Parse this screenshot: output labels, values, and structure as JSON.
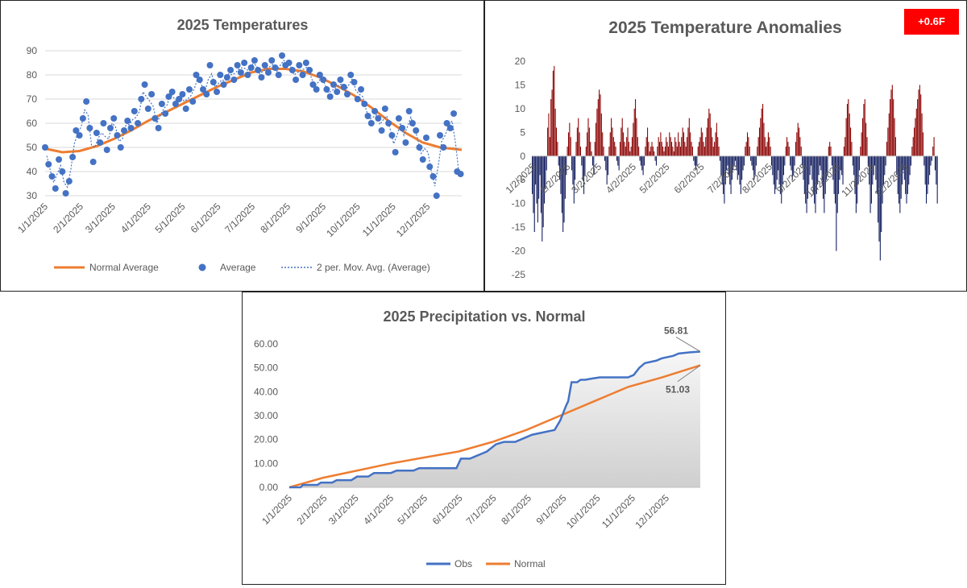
{
  "chart_data": [
    {
      "type": "scatter",
      "title": "2025 Temperatures",
      "x_tick_labels": [
        "1/1/2025",
        "2/1/2025",
        "3/1/2025",
        "4/1/2025",
        "5/1/2025",
        "6/1/2025",
        "7/1/2025",
        "8/1/2025",
        "9/1/2025",
        "10/1/2025",
        "11/1/2025",
        "12/1/2025"
      ],
      "x_tick_days": [
        0,
        31,
        59,
        90,
        120,
        151,
        181,
        212,
        243,
        273,
        304,
        334
      ],
      "xlim": [
        0,
        364
      ],
      "ylim": [
        30,
        90
      ],
      "yticks": [
        30,
        40,
        50,
        60,
        70,
        80,
        90
      ],
      "grid": true,
      "legend_position": "bottom",
      "series": [
        {
          "name": "Normal Average",
          "kind": "line",
          "color": "#ED7D31",
          "x": [
            0,
            15,
            30,
            45,
            60,
            75,
            90,
            105,
            120,
            135,
            150,
            165,
            180,
            195,
            210,
            225,
            240,
            255,
            270,
            285,
            300,
            315,
            330,
            345,
            364
          ],
          "y": [
            49.5,
            48,
            48.5,
            50.5,
            53.5,
            57,
            61,
            64.5,
            68,
            71.5,
            75,
            78,
            81,
            82.5,
            82.5,
            81.5,
            79,
            75.5,
            71.5,
            66.5,
            61,
            56,
            52,
            50,
            49
          ]
        },
        {
          "name": "Average",
          "kind": "scatter",
          "color": "#4472C4",
          "x": [
            0,
            3,
            6,
            9,
            12,
            15,
            18,
            21,
            24,
            27,
            30,
            33,
            36,
            39,
            42,
            45,
            48,
            51,
            54,
            57,
            60,
            63,
            66,
            69,
            72,
            75,
            78,
            81,
            84,
            87,
            90,
            93,
            96,
            99,
            102,
            105,
            108,
            111,
            114,
            117,
            120,
            123,
            126,
            129,
            132,
            135,
            138,
            141,
            144,
            147,
            150,
            153,
            156,
            159,
            162,
            165,
            168,
            171,
            174,
            177,
            180,
            183,
            186,
            189,
            192,
            195,
            198,
            201,
            204,
            207,
            210,
            213,
            216,
            219,
            222,
            225,
            228,
            231,
            234,
            237,
            240,
            243,
            246,
            249,
            252,
            255,
            258,
            261,
            264,
            267,
            270,
            273,
            276,
            279,
            282,
            285,
            288,
            291,
            294,
            297,
            300,
            303,
            306,
            309,
            312,
            315,
            318,
            321,
            324,
            327,
            330,
            333,
            336,
            339,
            342,
            345,
            348,
            351,
            354,
            357,
            360,
            363
          ],
          "y": [
            50,
            43,
            38,
            33,
            45,
            40,
            31,
            36,
            46,
            57,
            55,
            62,
            69,
            58,
            44,
            56,
            52,
            60,
            49,
            58,
            62,
            55,
            50,
            57,
            61,
            58,
            65,
            60,
            70,
            76,
            66,
            72,
            62,
            58,
            68,
            64,
            71,
            73,
            68,
            70,
            72,
            66,
            74,
            69,
            80,
            78,
            74,
            72,
            84,
            77,
            73,
            80,
            76,
            79,
            82,
            78,
            84,
            81,
            85,
            80,
            83,
            86,
            82,
            79,
            84,
            81,
            86,
            83,
            80,
            88,
            84,
            85,
            82,
            78,
            84,
            80,
            85,
            82,
            76,
            74,
            80,
            78,
            74,
            71,
            76,
            73,
            78,
            75,
            72,
            80,
            77,
            70,
            74,
            68,
            63,
            60,
            65,
            62,
            57,
            66,
            60,
            55,
            48,
            62,
            58,
            52,
            65,
            60,
            57,
            50,
            45,
            54,
            42,
            38,
            30,
            55,
            50,
            60,
            58,
            64,
            40,
            39
          ]
        },
        {
          "name": "2 per. Mov. Avg. (Average)",
          "kind": "dotted-line",
          "color": "#4472C4"
        }
      ]
    },
    {
      "type": "bar",
      "title": "2025 Temperature Anomalies",
      "badge": "+0.6F",
      "x_tick_labels": [
        "1/2/2025",
        "2/2/2025",
        "3/2/2025",
        "4/2/2025",
        "5/2/2025",
        "6/2/2025",
        "7/2/2025",
        "8/2/2025",
        "9/2/2025",
        "10/2/2025",
        "11/2/2025",
        "12/2/2025"
      ],
      "x_tick_days": [
        1,
        32,
        60,
        91,
        121,
        152,
        182,
        213,
        244,
        274,
        305,
        335
      ],
      "xlim": [
        0,
        364
      ],
      "ylim": [
        -25,
        20
      ],
      "yticks": [
        -25,
        -20,
        -15,
        -10,
        -5,
        0,
        5,
        10,
        15,
        20
      ],
      "positive_color": "#8B0000",
      "negative_color": "#0F1A5C",
      "values": [
        -8,
        -12,
        -16,
        -6,
        -10,
        -14,
        -9,
        -4,
        -12,
        -18,
        -15,
        -10,
        -7,
        -3,
        6,
        9,
        4,
        12,
        14,
        18,
        19,
        10,
        6,
        3,
        -2,
        -5,
        -8,
        -12,
        -16,
        -14,
        -9,
        -4,
        2,
        5,
        7,
        4,
        -3,
        -6,
        -10,
        -5,
        3,
        6,
        8,
        5,
        2,
        -2,
        -5,
        -8,
        -4,
        2,
        5,
        8,
        6,
        3,
        1,
        -2,
        -4,
        3,
        7,
        10,
        12,
        14,
        13,
        9,
        5,
        2,
        -1,
        -3,
        -6,
        -4,
        2,
        5,
        8,
        6,
        4,
        3,
        2,
        -1,
        -2,
        -3,
        3,
        6,
        8,
        5,
        3,
        2,
        4,
        6,
        3,
        1,
        2,
        4,
        7,
        10,
        12,
        8,
        4,
        2,
        -1,
        -2,
        -3,
        -4,
        -2,
        2,
        4,
        6,
        3,
        1,
        2,
        3,
        2,
        1,
        -1,
        -2,
        2,
        4,
        3,
        5,
        3,
        2,
        1,
        2,
        4,
        3,
        2,
        5,
        4,
        3,
        2,
        1,
        4,
        3,
        2,
        5,
        3,
        2,
        4,
        6,
        5,
        3,
        2,
        4,
        6,
        8,
        5,
        3,
        2,
        -1,
        -2,
        -3,
        -2,
        2,
        3,
        4,
        6,
        5,
        3,
        2,
        4,
        6,
        8,
        10,
        9,
        6,
        4,
        2,
        3,
        5,
        7,
        4,
        2,
        -1,
        -4,
        -6,
        -8,
        -10,
        -6,
        -3,
        -2,
        -4,
        -6,
        -8,
        -5,
        -3,
        -2,
        -1,
        -3,
        -5,
        -4,
        -6,
        -8,
        -5,
        -3,
        -2,
        2,
        3,
        5,
        4,
        2,
        -1,
        -2,
        -3,
        -5,
        -4,
        -2,
        2,
        4,
        6,
        8,
        10,
        11,
        7,
        4,
        2,
        3,
        5,
        4,
        2,
        -2,
        -4,
        -6,
        -8,
        -7,
        -5,
        -3,
        -6,
        -8,
        -10,
        -6,
        -4,
        -2,
        2,
        4,
        3,
        2,
        -2,
        -3,
        -5,
        -4,
        -2,
        3,
        5,
        7,
        6,
        4,
        2,
        -2,
        -5,
        -8,
        -10,
        -12,
        -9,
        -6,
        -4,
        -2,
        -5,
        -8,
        -10,
        -12,
        -8,
        -6,
        -4,
        -2,
        -3,
        -6,
        -9,
        -12,
        -8,
        -5,
        -4,
        2,
        3,
        2,
        -2,
        -5,
        -8,
        -10,
        -20,
        -12,
        -8,
        -5,
        -3,
        -4,
        -6,
        2,
        4,
        8,
        11,
        12,
        9,
        6,
        3,
        -2,
        -4,
        -8,
        -12,
        -10,
        -6,
        -3,
        2,
        5,
        8,
        11,
        12,
        7,
        4,
        -2,
        -6,
        -12,
        -10,
        -6,
        -4,
        -2,
        -5,
        -8,
        -14,
        -18,
        -22,
        -16,
        -10,
        -6,
        -4,
        -2,
        3,
        6,
        9,
        12,
        14,
        15,
        12,
        8,
        4,
        -4,
        -8,
        -10,
        -12,
        -9,
        -6,
        -3,
        -5,
        -8,
        -10,
        -8,
        -6,
        -4,
        -2,
        2,
        4,
        6,
        8,
        10,
        12,
        14,
        15,
        13,
        9,
        5,
        -2,
        -6,
        -10,
        -8,
        -6,
        -4,
        -2,
        -1,
        2,
        4,
        -3,
        -6,
        -10
      ]
    },
    {
      "type": "line",
      "title": "2025 Precipitation  vs. Normal",
      "x_tick_labels": [
        "1/1/2025",
        "2/1/2025",
        "3/1/2025",
        "4/1/2025",
        "5/1/2025",
        "6/1/2025",
        "7/1/2025",
        "8/1/2025",
        "9/1/2025",
        "10/1/2025",
        "11/1/2025",
        "12/1/2025"
      ],
      "x_tick_days": [
        0,
        31,
        59,
        90,
        120,
        151,
        181,
        212,
        243,
        273,
        304,
        334
      ],
      "xlim": [
        0,
        364
      ],
      "ylim": [
        0,
        60
      ],
      "yticks": [
        "0.00",
        "10.00",
        "20.00",
        "30.00",
        "40.00",
        "50.00",
        "60.00"
      ],
      "legend_position": "bottom",
      "series": [
        {
          "name": "Obs",
          "color": "#4472C4",
          "end_label": "56.81",
          "x": [
            0,
            10,
            12,
            25,
            28,
            38,
            42,
            55,
            60,
            70,
            75,
            90,
            95,
            110,
            115,
            130,
            140,
            148,
            152,
            160,
            165,
            170,
            175,
            183,
            190,
            200,
            205,
            215,
            225,
            235,
            240,
            245,
            247,
            250,
            255,
            258,
            262,
            268,
            275,
            285,
            290,
            300,
            305,
            310,
            315,
            325,
            330,
            340,
            345,
            355,
            364
          ],
          "y": [
            0,
            0,
            1,
            1,
            2,
            2,
            3,
            3,
            4.5,
            4.5,
            6,
            6,
            7,
            7,
            8,
            8,
            8,
            8,
            12,
            12,
            13,
            14,
            15,
            18,
            19,
            19,
            20,
            22,
            23,
            24,
            28,
            34,
            36,
            44,
            44,
            45,
            45,
            45.5,
            46,
            46,
            46,
            46,
            47,
            50,
            52,
            53,
            54,
            55,
            56,
            56.5,
            56.81
          ]
        },
        {
          "name": "Normal",
          "color": "#ED7D31",
          "end_label": "51.03",
          "x": [
            0,
            30,
            60,
            90,
            120,
            150,
            180,
            210,
            240,
            270,
            300,
            330,
            364
          ],
          "y": [
            0,
            4,
            7,
            10,
            12.5,
            15,
            19,
            24,
            30,
            36,
            42,
            46,
            51.03
          ]
        }
      ]
    }
  ]
}
